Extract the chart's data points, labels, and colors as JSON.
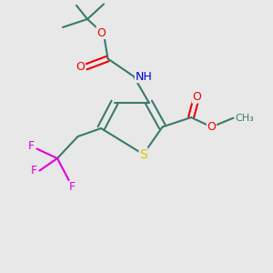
{
  "background_color": "#e8e8e8",
  "bond_color": "#3a7a6a",
  "colors": {
    "C": "#3a7a6a",
    "N": "#0000dd",
    "O": "#ee0000",
    "S": "#cccc00",
    "F": "#dd00dd",
    "H": "#7a9a9a"
  },
  "font_size": 9,
  "lw": 1.5
}
